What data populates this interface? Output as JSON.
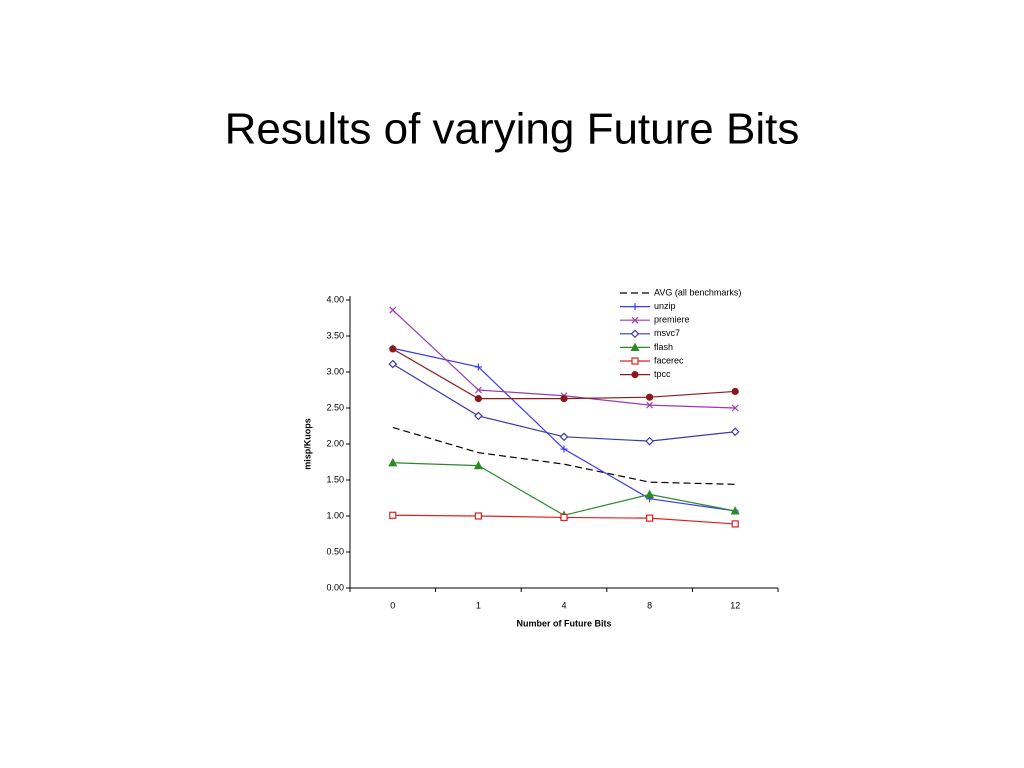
{
  "chart_data": {
    "type": "line",
    "title": "Results of varying Future Bits",
    "x_label": "Number of Future Bits",
    "y_label": "misp/Kuops",
    "categories": [
      "0",
      "1",
      "4",
      "8",
      "12"
    ],
    "ylim": [
      0,
      4
    ],
    "yticks": [
      {
        "value": 0,
        "label": "0.00"
      },
      {
        "value": 0.5,
        "label": "0.50"
      },
      {
        "value": 1,
        "label": "1.00"
      },
      {
        "value": 1.5,
        "label": "1.50"
      },
      {
        "value": 2,
        "label": "2.00"
      },
      {
        "value": 2.5,
        "label": "2.50"
      },
      {
        "value": 3,
        "label": "3.00"
      },
      {
        "value": 3.5,
        "label": "3.50"
      },
      {
        "value": 4,
        "label": "4.00"
      }
    ],
    "legend": "top-right",
    "series": [
      {
        "name": "AVG (all benchmarks)",
        "color": "#000000",
        "style": "dashed",
        "marker": "none",
        "values": [
          2.23,
          1.88,
          1.72,
          1.47,
          1.44
        ]
      },
      {
        "name": "unzip",
        "color": "#3a3af0",
        "style": "solid",
        "marker": "plus",
        "values": [
          3.33,
          3.07,
          1.93,
          1.24,
          1.07
        ]
      },
      {
        "name": "premiere",
        "color": "#9a3ab0",
        "style": "solid",
        "marker": "cross",
        "values": [
          3.86,
          2.75,
          2.67,
          2.54,
          2.5
        ]
      },
      {
        "name": "msvc7",
        "color": "#3a3aa8",
        "style": "solid",
        "marker": "diamond",
        "values": [
          3.11,
          2.39,
          2.1,
          2.04,
          2.17
        ]
      },
      {
        "name": "flash",
        "color": "#2a8a2a",
        "style": "solid",
        "marker": "triangle",
        "values": [
          1.74,
          1.7,
          1.01,
          1.3,
          1.07
        ]
      },
      {
        "name": "facerec",
        "color": "#e02020",
        "style": "solid",
        "marker": "square",
        "values": [
          1.01,
          1.0,
          0.98,
          0.97,
          0.89
        ]
      },
      {
        "name": "tpcc",
        "color": "#8a1a1a",
        "style": "solid",
        "marker": "circle",
        "values": [
          3.32,
          2.63,
          2.63,
          2.65,
          2.73
        ]
      }
    ]
  }
}
